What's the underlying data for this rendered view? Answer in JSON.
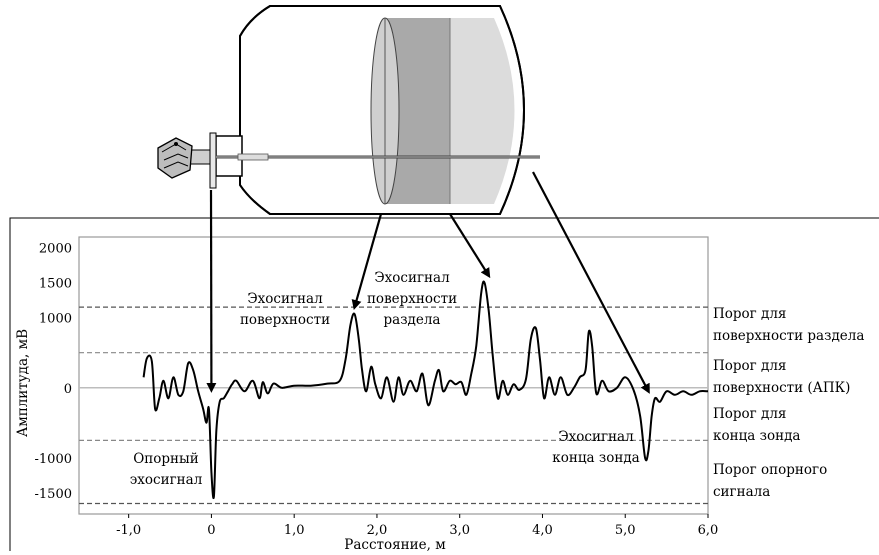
{
  "chart_data": {
    "type": "line",
    "xlabel": "Расстояние, м",
    "ylabel": "Амплитуда, мВ",
    "xlim": [
      -1.6,
      6.0
    ],
    "ylim": [
      -1800,
      2150
    ],
    "grid": false,
    "x_ticks": [
      "-1,0",
      "0",
      "1,0",
      "2,0",
      "3,0",
      "4,0",
      "5,0",
      "6,0"
    ],
    "x_tick_values": [
      -1,
      0,
      1,
      2,
      3,
      4,
      5,
      6
    ],
    "y_ticks": [
      "2000",
      "1500",
      "1000",
      "0",
      "-1000",
      "-1500"
    ],
    "y_tick_values": [
      2000,
      1500,
      1000,
      0,
      -1000,
      -1500
    ],
    "thresholds": [
      {
        "label_lines": [
          "Порог для",
          "поверхности раздела"
        ],
        "value": 1150
      },
      {
        "label_lines": [
          "Порог для",
          "поверхности (АПК)"
        ],
        "value": 500
      },
      {
        "label_lines": [
          "Порог для",
          "конца зонда"
        ],
        "value": -750
      },
      {
        "label_lines": [
          "Порог опорного",
          "сигнала"
        ],
        "value": -1650
      }
    ],
    "annotations": [
      {
        "lines": [
          "Опорный",
          "эхосигнал"
        ],
        "x": 0.0
      },
      {
        "lines": [
          "Эхосигнал",
          "поверхности"
        ],
        "x": 1.75
      },
      {
        "lines": [
          "Эхосигнал",
          "поверхности",
          "раздела"
        ],
        "x": 3.35
      },
      {
        "lines": [
          "Эхосигнал",
          "конца зонда"
        ],
        "x": 5.3
      }
    ],
    "series": [
      {
        "x": [
          -0.82,
          -0.78,
          -0.72,
          -0.68,
          -0.63,
          -0.58,
          -0.52,
          -0.46,
          -0.4,
          -0.34,
          -0.28,
          -0.22,
          -0.16,
          -0.1,
          -0.06,
          -0.03,
          0.0,
          0.03,
          0.06,
          0.1,
          0.15,
          0.2,
          0.25,
          0.3,
          0.4,
          0.5,
          0.58,
          0.62,
          0.68,
          0.75,
          0.85,
          1.0,
          1.2,
          1.4,
          1.55,
          1.62,
          1.68,
          1.73,
          1.78,
          1.82,
          1.87,
          1.93,
          1.98,
          2.05,
          2.12,
          2.2,
          2.26,
          2.32,
          2.4,
          2.48,
          2.55,
          2.62,
          2.7,
          2.75,
          2.8,
          2.88,
          2.95,
          3.02,
          3.08,
          3.14,
          3.2,
          3.26,
          3.3,
          3.35,
          3.4,
          3.46,
          3.52,
          3.58,
          3.65,
          3.72,
          3.8,
          3.86,
          3.92,
          3.97,
          4.02,
          4.08,
          4.15,
          4.22,
          4.3,
          4.38,
          4.45,
          4.52,
          4.56,
          4.6,
          4.65,
          4.72,
          4.8,
          4.9,
          5.0,
          5.1,
          5.18,
          5.24,
          5.28,
          5.32,
          5.36,
          5.42,
          5.5,
          5.6,
          5.7,
          5.8,
          5.9,
          6.0
        ],
        "y": [
          150,
          420,
          380,
          -300,
          -150,
          100,
          -150,
          150,
          -100,
          -50,
          350,
          250,
          -50,
          -300,
          -500,
          -300,
          -1200,
          -1550,
          -600,
          -200,
          -150,
          -50,
          50,
          100,
          -50,
          100,
          -150,
          80,
          -80,
          60,
          0,
          30,
          30,
          60,
          100,
          400,
          900,
          1050,
          700,
          250,
          -50,
          300,
          50,
          -150,
          150,
          -200,
          150,
          -100,
          100,
          -50,
          200,
          -250,
          100,
          250,
          -50,
          100,
          50,
          80,
          -100,
          200,
          600,
          1350,
          1500,
          1100,
          450,
          -150,
          100,
          -100,
          50,
          -30,
          120,
          700,
          850,
          400,
          -150,
          150,
          -100,
          150,
          -100,
          0,
          150,
          250,
          800,
          600,
          -80,
          100,
          -50,
          0,
          150,
          -30,
          -400,
          -1000,
          -900,
          -400,
          -150,
          -200,
          -50,
          -100,
          -50,
          -100,
          -50,
          -50
        ]
      }
    ]
  }
}
